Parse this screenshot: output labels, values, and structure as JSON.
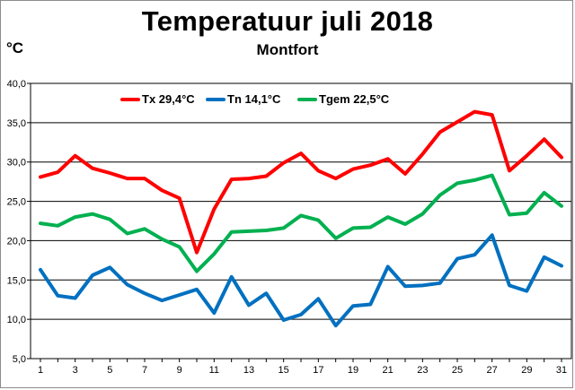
{
  "chart_data": {
    "type": "line",
    "title": "Temperatuur juli 2018",
    "subtitle": "Montfort",
    "ylabel": "°C",
    "xlabel": "",
    "ylim": [
      5,
      40
    ],
    "yticks": [
      "5,0",
      "10,0",
      "15,0",
      "20,0",
      "25,0",
      "30,0",
      "35,0",
      "40,0"
    ],
    "yticks_values": [
      5,
      10,
      15,
      20,
      25,
      30,
      35,
      40
    ],
    "x": [
      1,
      2,
      3,
      4,
      5,
      6,
      7,
      8,
      9,
      10,
      11,
      12,
      13,
      14,
      15,
      16,
      17,
      18,
      19,
      20,
      21,
      22,
      23,
      24,
      25,
      26,
      27,
      28,
      29,
      30,
      31
    ],
    "xticks": [
      "1",
      "3",
      "5",
      "7",
      "9",
      "11",
      "13",
      "15",
      "17",
      "19",
      "21",
      "23",
      "25",
      "27",
      "29",
      "31"
    ],
    "grid": true,
    "legend_position": "top",
    "series": [
      {
        "name": "Tx 29,4°C",
        "color": "#ff0000",
        "values": [
          28.1,
          28.7,
          30.8,
          29.2,
          28.6,
          27.9,
          27.9,
          26.4,
          25.4,
          18.5,
          24.0,
          27.8,
          27.9,
          28.2,
          29.9,
          31.1,
          28.9,
          27.9,
          29.1,
          29.6,
          30.4,
          28.5,
          31.0,
          33.8,
          35.1,
          36.4,
          36.0,
          28.9,
          30.8,
          32.9,
          30.6
        ]
      },
      {
        "name": "Tn 14,1°C",
        "color": "#0070c0",
        "values": [
          16.3,
          13.0,
          12.7,
          15.6,
          16.6,
          14.4,
          13.3,
          12.4,
          13.1,
          13.8,
          10.8,
          15.4,
          11.8,
          13.3,
          9.9,
          10.6,
          12.6,
          9.2,
          11.7,
          11.9,
          16.7,
          14.2,
          14.3,
          14.6,
          17.7,
          18.2,
          20.7,
          14.3,
          13.6,
          17.9,
          16.8
        ]
      },
      {
        "name": "Tgem 22,5°C",
        "color": "#00b050",
        "values": [
          22.2,
          21.9,
          23.0,
          23.4,
          22.7,
          20.9,
          21.5,
          20.2,
          19.2,
          16.1,
          18.3,
          21.1,
          21.2,
          21.3,
          21.6,
          23.2,
          22.6,
          20.3,
          21.6,
          21.7,
          23.0,
          22.1,
          23.4,
          25.8,
          27.3,
          27.7,
          28.3,
          23.3,
          23.5,
          26.1,
          24.4
        ]
      }
    ]
  }
}
